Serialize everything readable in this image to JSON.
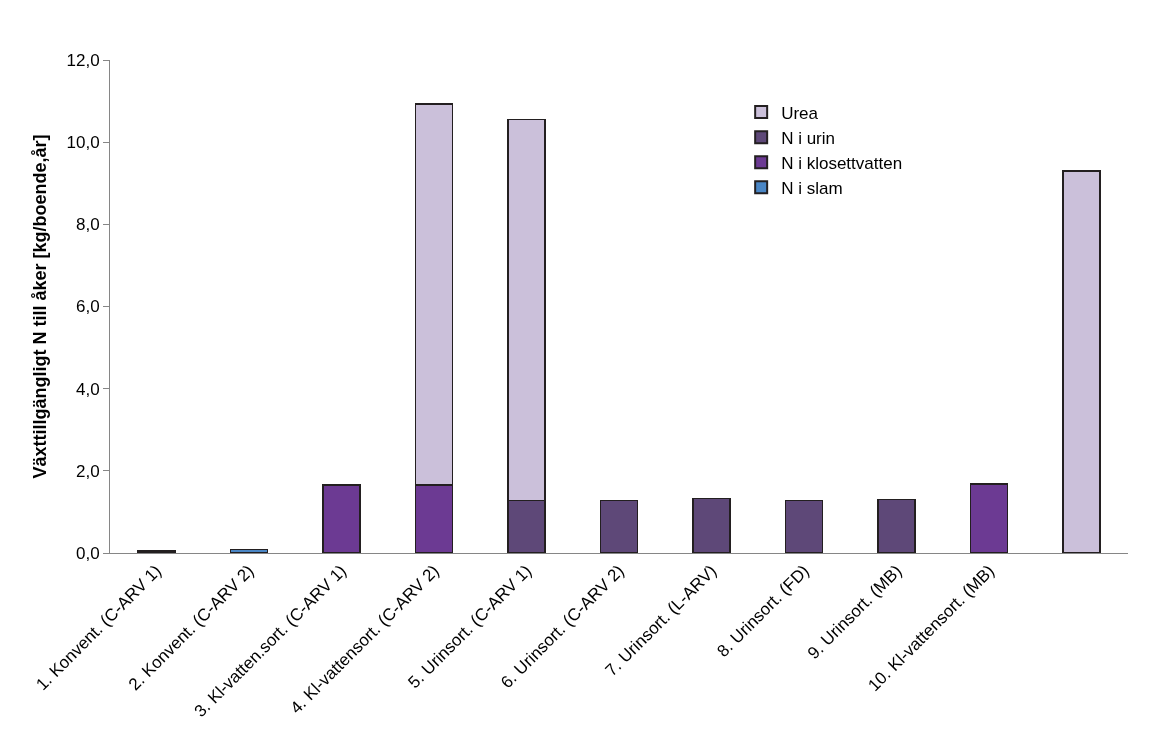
{
  "chart_data": {
    "type": "bar",
    "stacked": true,
    "ylabel": "Växttillgängligt N till åker [kg/boende,år]",
    "categories": [
      "1. Konvent. (C-ARV 1)",
      "2. Konvent. (C-ARV 2)",
      "3. Kl-vatten.sort. (C-ARV 1)",
      "4. Kl-vattensort. (C-ARV 2)",
      "5. Urinsort. (C-ARV 1)",
      "6. Urinsort. (C-ARV 2)",
      "7. Urinsort. (L-ARV)",
      "8. Urinsort. (FD)",
      "9. Urinsort. (MB)",
      "10. Kl-vattensort. (MB)",
      null
    ],
    "series": [
      {
        "name": "N i slam",
        "color": "#4a86c5",
        "values": [
          0.05,
          0.08,
          null,
          null,
          null,
          null,
          null,
          null,
          null,
          null,
          null
        ]
      },
      {
        "name": "N i klosettvatten",
        "color": "#6c3a93",
        "values": [
          null,
          null,
          1.65,
          1.65,
          null,
          null,
          null,
          null,
          null,
          1.68,
          null
        ]
      },
      {
        "name": "N i urin",
        "color": "#5e4878",
        "values": [
          null,
          null,
          null,
          null,
          1.28,
          1.28,
          1.33,
          1.28,
          1.3,
          null,
          null
        ]
      },
      {
        "name": "Urea",
        "color": "#cbc0da",
        "values": [
          null,
          null,
          null,
          9.28,
          9.27,
          null,
          null,
          null,
          null,
          null,
          9.3
        ]
      }
    ],
    "ylim": [
      0,
      12
    ],
    "yticks": [
      {
        "value": 0,
        "label": "0,0"
      },
      {
        "value": 2,
        "label": "2,0"
      },
      {
        "value": 4,
        "label": "4,0"
      },
      {
        "value": 6,
        "label": "6,0"
      },
      {
        "value": 8,
        "label": "8,0"
      },
      {
        "value": 10,
        "label": "10,0"
      },
      {
        "value": 12,
        "label": "12,0"
      }
    ],
    "legend": "top right"
  }
}
